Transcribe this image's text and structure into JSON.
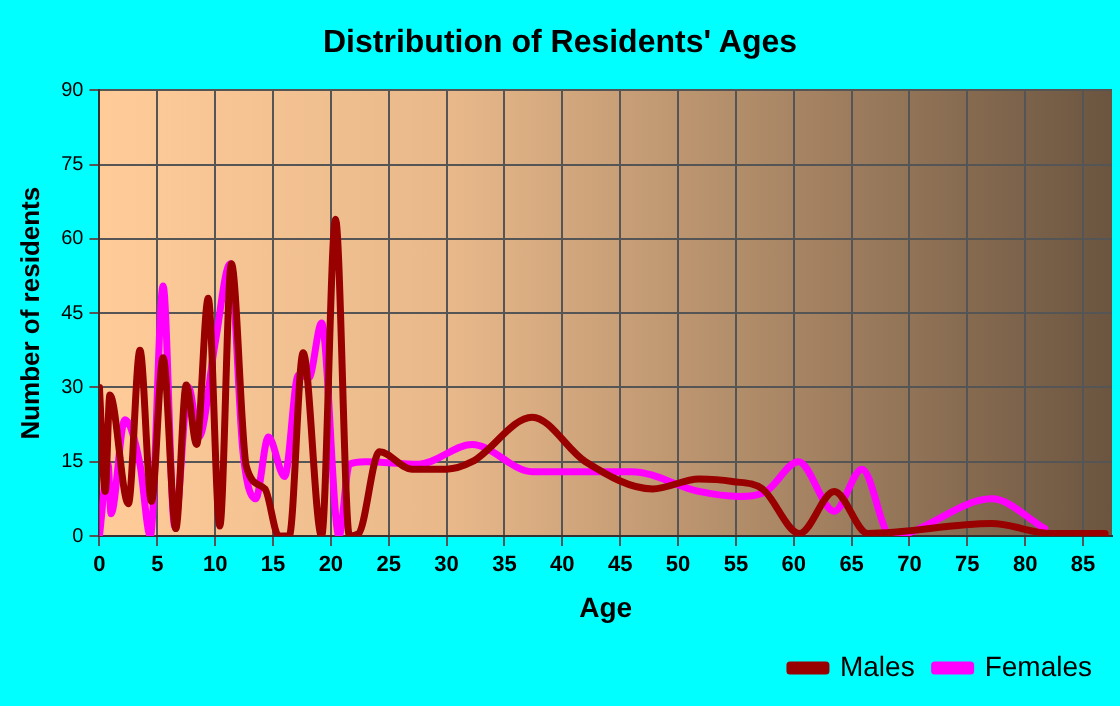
{
  "chart_data": {
    "type": "line",
    "title": "Distribution of Residents' Ages",
    "xlabel": "Age",
    "ylabel": "Number of residents",
    "xlim": [
      0,
      87.5
    ],
    "xticks": [
      0,
      5,
      10,
      15,
      20,
      25,
      30,
      35,
      40,
      45,
      50,
      55,
      60,
      65,
      70,
      75,
      80,
      85
    ],
    "ylim": [
      0,
      90
    ],
    "yticks": [
      0,
      15,
      30,
      45,
      60,
      75,
      90
    ],
    "grid": true,
    "legend": "bottom right",
    "marker": "none",
    "line_style": "solid",
    "series": [
      {
        "name": "Males",
        "color": "#990000",
        "x": [
          0,
          0.5,
          0.9,
          2.5,
          3.5,
          4.5,
          5.5,
          6.6,
          7.5,
          8.4,
          9.4,
          10.4,
          11.4,
          12.7,
          14.3,
          15.5,
          16.4,
          17.6,
          19.2,
          20.4,
          21.6,
          22.4,
          24.2,
          27,
          30,
          32.2,
          37.4,
          42,
          47.8,
          51.8,
          54.7,
          57.3,
          60.5,
          63.5,
          66.4,
          77.1,
          82.3,
          86.9
        ],
        "values": [
          30,
          9,
          28.5,
          6.5,
          37.5,
          7,
          36,
          1.5,
          30.5,
          18.5,
          48,
          2,
          55,
          14,
          9.5,
          0,
          0,
          37,
          0,
          64,
          0,
          0.5,
          17,
          13.5,
          13.5,
          15,
          24,
          15,
          9.5,
          11.5,
          11,
          9.5,
          0.5,
          9,
          0.5,
          2.5,
          0.5,
          0.5
        ]
      },
      {
        "name": "Females",
        "color": "#ff00ff",
        "x": [
          0,
          0.75,
          1,
          2.2,
          3.5,
          4.4,
          5.5,
          6.5,
          7.7,
          8.6,
          10,
          11.3,
          12.4,
          13.5,
          14.6,
          16,
          17.2,
          18.1,
          19.2,
          20.7,
          21.6,
          23,
          27.6,
          32.2,
          37.4,
          46,
          51.8,
          55.3,
          57.6,
          60.4,
          63.5,
          65.9,
          68.4,
          77.1,
          81.7
        ],
        "values": [
          0,
          14.5,
          4.5,
          23.5,
          14.5,
          0,
          50.5,
          2,
          30,
          20,
          39,
          55,
          17,
          7.5,
          20,
          12,
          32.5,
          32,
          43,
          0,
          14.5,
          15,
          14.5,
          18.5,
          13,
          13,
          9,
          8,
          9,
          15,
          5,
          13.5,
          0,
          7.5,
          1.5
        ]
      }
    ]
  }
}
